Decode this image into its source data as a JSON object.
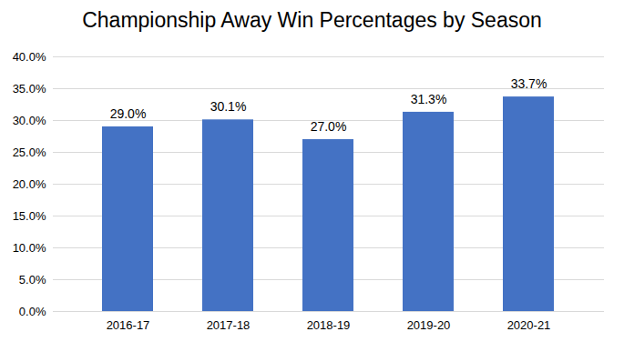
{
  "chart_data": {
    "type": "bar",
    "title": "Championship Away Win Percentages by Season",
    "categories": [
      "2016-17",
      "2017-18",
      "2018-19",
      "2019-20",
      "2020-21"
    ],
    "values": [
      29.0,
      30.1,
      27.0,
      31.3,
      33.7
    ],
    "value_labels": [
      "29.0%",
      "30.1%",
      "27.0%",
      "31.3%",
      "33.7%"
    ],
    "color": "#4472c4",
    "ylim": [
      0,
      40
    ],
    "yticks": [
      {
        "value": 0,
        "label": "0.0%"
      },
      {
        "value": 5,
        "label": "5.0%"
      },
      {
        "value": 10,
        "label": "10.0%"
      },
      {
        "value": 15,
        "label": "15.0%"
      },
      {
        "value": 20,
        "label": "20.0%"
      },
      {
        "value": 25,
        "label": "25.0%"
      },
      {
        "value": 30,
        "label": "30.0%"
      },
      {
        "value": 35,
        "label": "35.0%"
      },
      {
        "value": 40,
        "label": "40.0%"
      }
    ],
    "grid": true,
    "data_labels": true
  }
}
